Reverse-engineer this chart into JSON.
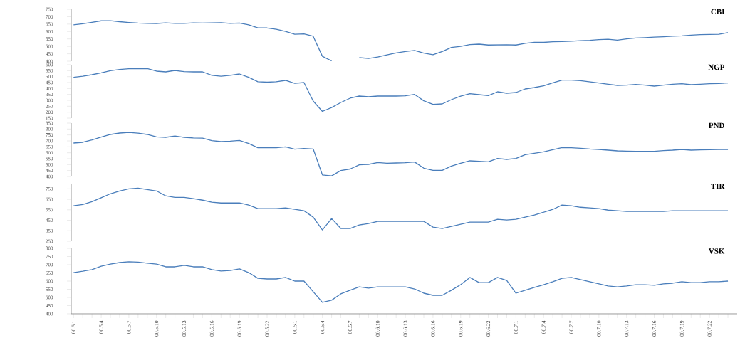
{
  "chart_data": [
    {
      "type": "line",
      "title": "CBI",
      "categories": [
        "00.5.1",
        null,
        null,
        "00.5.4",
        null,
        null,
        "00.5.7",
        null,
        null,
        "00.5.10",
        null,
        null,
        "00.5.13",
        null,
        null,
        "00.5.16",
        null,
        null,
        "00.5.19",
        null,
        null,
        "00.5.22",
        null,
        null,
        "00.6.1",
        null,
        null,
        "00.6.4",
        null,
        null,
        "00.6.7",
        null,
        null,
        "00.6.10",
        null,
        null,
        "00.6.13",
        null,
        null,
        "00.6.16",
        null,
        null,
        "00.6.19",
        null,
        null,
        "00.6.22",
        null,
        null,
        "00.7.1",
        null,
        null,
        "00.7.4",
        null,
        null,
        "00.7.7",
        null,
        null,
        "00.7.10",
        null,
        null,
        "00.7.13",
        null,
        null,
        "00.7.16",
        null,
        null,
        "00.7.19",
        null,
        null,
        "00.7.22",
        null,
        null
      ],
      "color": "#4a7ebb",
      "ylim": [
        400,
        750
      ],
      "yticks": [
        400,
        450,
        500,
        550,
        600,
        650,
        700,
        750
      ],
      "tick_labels": "y",
      "values": [
        645,
        652,
        662,
        672,
        673,
        666,
        661,
        657,
        655,
        654,
        658,
        655,
        655,
        658,
        657,
        658,
        659,
        655,
        657,
        645,
        625,
        624,
        615,
        601,
        582,
        584,
        568,
        433,
        402,
        null,
        null,
        424,
        419,
        428,
        442,
        456,
        465,
        473,
        455,
        444,
        465,
        493,
        500,
        512,
        515,
        509,
        510,
        511,
        509,
        520,
        528,
        527,
        531,
        533,
        535,
        538,
        541,
        546,
        548,
        542,
        550,
        556,
        559,
        562,
        565,
        568,
        571,
        576,
        579,
        580,
        582,
        592
      ]
    },
    {
      "type": "line",
      "title": "NGP",
      "categories": [
        "00.5.1",
        null,
        null,
        "00.5.4",
        null,
        null,
        "00.5.7",
        null,
        null,
        "00.5.10",
        null,
        null,
        "00.5.13",
        null,
        null,
        "00.5.16",
        null,
        null,
        "00.5.19",
        null,
        null,
        "00.5.22",
        null,
        null,
        "00.6.1",
        null,
        null,
        "00.6.4",
        null,
        null,
        "00.6.7",
        null,
        null,
        "00.6.10",
        null,
        null,
        "00.6.13",
        null,
        null,
        "00.6.16",
        null,
        null,
        "00.6.19",
        null,
        null,
        "00.6.22",
        null,
        null,
        "00.7.1",
        null,
        null,
        "00.7.4",
        null,
        null,
        "00.7.7",
        null,
        null,
        "00.7.10",
        null,
        null,
        "00.7.13",
        null,
        null,
        "00.7.16",
        null,
        null,
        "00.7.19",
        null,
        null,
        "00.7.22",
        null,
        null
      ],
      "color": "#4a7ebb",
      "ylim": [
        150,
        600
      ],
      "yticks": [
        150,
        200,
        250,
        300,
        350,
        400,
        450,
        500,
        550,
        600
      ],
      "tick_labels": "y",
      "values": [
        494,
        503,
        516,
        532,
        550,
        560,
        566,
        567,
        567,
        546,
        540,
        552,
        542,
        540,
        540,
        511,
        503,
        511,
        522,
        494,
        457,
        453,
        457,
        468,
        443,
        450,
        294,
        207,
        239,
        282,
        318,
        336,
        330,
        336,
        336,
        336,
        338,
        350,
        296,
        266,
        270,
        306,
        335,
        356,
        348,
        340,
        372,
        360,
        366,
        396,
        408,
        422,
        448,
        470,
        470,
        466,
        456,
        446,
        436,
        426,
        428,
        434,
        428,
        420,
        428,
        436,
        440,
        432,
        436,
        440,
        442,
        446
      ]
    },
    {
      "type": "line",
      "title": "PND",
      "categories": [
        "00.5.1",
        null,
        null,
        "00.5.4",
        null,
        null,
        "00.5.7",
        null,
        null,
        "00.5.10",
        null,
        null,
        "00.5.13",
        null,
        null,
        "00.5.16",
        null,
        null,
        "00.5.19",
        null,
        null,
        "00.5.22",
        null,
        null,
        "00.6.1",
        null,
        null,
        "00.6.4",
        null,
        null,
        "00.6.7",
        null,
        null,
        "00.6.10",
        null,
        null,
        "00.6.13",
        null,
        null,
        "00.6.16",
        null,
        null,
        "00.6.19",
        null,
        null,
        "00.6.22",
        null,
        null,
        "00.7.1",
        null,
        null,
        "00.7.4",
        null,
        null,
        "00.7.7",
        null,
        null,
        "00.7.10",
        null,
        null,
        "00.7.13",
        null,
        null,
        "00.7.16",
        null,
        null,
        "00.7.19",
        null,
        null,
        "00.7.22",
        null,
        null
      ],
      "color": "#4a7ebb",
      "ylim": [
        400,
        850
      ],
      "yticks": [
        400,
        450,
        500,
        550,
        600,
        650,
        700,
        750,
        800,
        850
      ],
      "tick_labels": "y",
      "values": [
        682,
        688,
        708,
        732,
        754,
        766,
        771,
        765,
        754,
        734,
        730,
        741,
        730,
        725,
        723,
        702,
        694,
        698,
        704,
        678,
        642,
        642,
        642,
        650,
        630,
        636,
        632,
        413,
        405,
        450,
        463,
        498,
        502,
        518,
        512,
        514,
        516,
        522,
        470,
        452,
        452,
        488,
        512,
        532,
        528,
        524,
        552,
        544,
        552,
        584,
        596,
        608,
        626,
        644,
        642,
        638,
        632,
        628,
        622,
        616,
        614,
        612,
        612,
        612,
        618,
        622,
        628,
        622,
        624,
        626,
        627,
        628
      ]
    },
    {
      "type": "line",
      "title": "TIR",
      "categories": [
        "00.5.1",
        null,
        null,
        "00.5.4",
        null,
        null,
        "00.5.7",
        null,
        null,
        "00.5.10",
        null,
        null,
        "00.5.13",
        null,
        null,
        "00.5.16",
        null,
        null,
        "00.5.19",
        null,
        null,
        "00.5.22",
        null,
        null,
        "00.6.1",
        null,
        null,
        "00.6.4",
        null,
        null,
        "00.6.7",
        null,
        null,
        "00.6.10",
        null,
        null,
        "00.6.13",
        null,
        null,
        "00.6.16",
        null,
        null,
        "00.6.19",
        null,
        null,
        "00.6.22",
        null,
        null,
        "00.7.1",
        null,
        null,
        "00.7.4",
        null,
        null,
        "00.7.7",
        null,
        null,
        "00.7.10",
        null,
        null,
        "00.7.13",
        null,
        null,
        "00.7.16",
        null,
        null,
        "00.7.19",
        null,
        null,
        "00.7.22",
        null,
        null
      ],
      "color": "#4a7ebb",
      "ylim": [
        250,
        800
      ],
      "yticks": [
        250,
        350,
        450,
        550,
        650,
        750
      ],
      "tick_labels": "y",
      "values": [
        588,
        600,
        628,
        665,
        703,
        730,
        750,
        757,
        743,
        730,
        683,
        669,
        669,
        656,
        642,
        622,
        615,
        615,
        615,
        595,
        561,
        561,
        561,
        568,
        554,
        541,
        480,
        358,
        466,
        372,
        372,
        405,
        419,
        439,
        439,
        439,
        439,
        439,
        439,
        385,
        372,
        392,
        412,
        433,
        433,
        433,
        460,
        453,
        460,
        480,
        500,
        527,
        554,
        595,
        588,
        574,
        568,
        561,
        547,
        541,
        534,
        534,
        534,
        534,
        534,
        541,
        541,
        541,
        541,
        541,
        541,
        541
      ]
    },
    {
      "type": "line",
      "title": "VSK",
      "categories": [
        "00.5.1",
        null,
        null,
        "00.5.4",
        null,
        null,
        "00.5.7",
        null,
        null,
        "00.5.10",
        null,
        null,
        "00.5.13",
        null,
        null,
        "00.5.16",
        null,
        null,
        "00.5.19",
        null,
        null,
        "00.5.22",
        null,
        null,
        "00.6.1",
        null,
        null,
        "00.6.4",
        null,
        null,
        "00.6.7",
        null,
        null,
        "00.6.10",
        null,
        null,
        "00.6.13",
        null,
        null,
        "00.6.16",
        null,
        null,
        "00.6.19",
        null,
        null,
        "00.6.22",
        null,
        null,
        "00.7.1",
        null,
        null,
        "00.7.4",
        null,
        null,
        "00.7.7",
        null,
        null,
        "00.7.10",
        null,
        null,
        "00.7.13",
        null,
        null,
        "00.7.16",
        null,
        null,
        "00.7.19",
        null,
        null,
        "00.7.22",
        null,
        null
      ],
      "color": "#4a7ebb",
      "ylim": [
        400,
        800
      ],
      "yticks": [
        400,
        450,
        500,
        550,
        600,
        650,
        700,
        750,
        800
      ],
      "values": [
        652,
        660,
        670,
        691,
        704,
        713,
        718,
        716,
        709,
        704,
        687,
        687,
        696,
        687,
        687,
        670,
        661,
        665,
        674,
        652,
        617,
        613,
        613,
        622,
        600,
        600,
        535,
        470,
        483,
        522,
        544,
        565,
        557,
        565,
        565,
        565,
        565,
        552,
        526,
        513,
        513,
        544,
        578,
        622,
        591,
        591,
        622,
        604,
        526,
        544,
        561,
        578,
        596,
        617,
        622,
        609,
        596,
        583,
        570,
        565,
        570,
        578,
        578,
        574,
        583,
        587,
        596,
        591,
        591,
        596,
        596,
        600
      ]
    }
  ]
}
